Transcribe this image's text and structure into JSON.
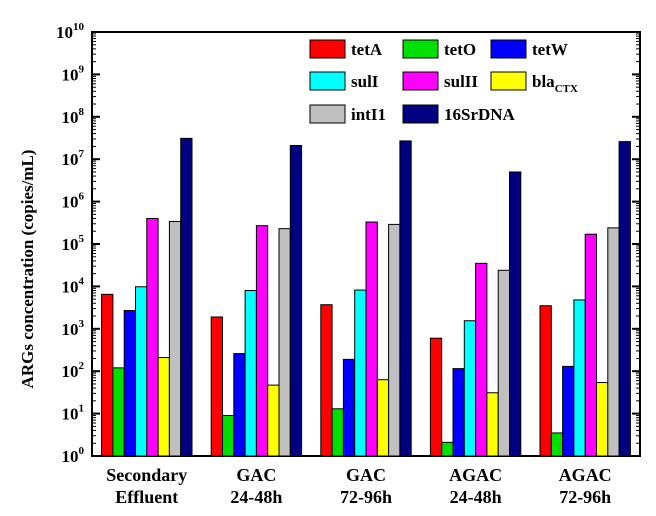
{
  "chart_data": {
    "type": "bar",
    "title": "",
    "xlabel": "",
    "ylabel": "ARGs concentration (copies/mL)",
    "yscale": "log",
    "ylim": [
      1,
      10000000000
    ],
    "y_tick_labels": [
      {
        "base": "10",
        "exp": "0"
      },
      {
        "base": "10",
        "exp": "1"
      },
      {
        "base": "10",
        "exp": "2"
      },
      {
        "base": "10",
        "exp": "3"
      },
      {
        "base": "10",
        "exp": "4"
      },
      {
        "base": "10",
        "exp": "5"
      },
      {
        "base": "10",
        "exp": "6"
      },
      {
        "base": "10",
        "exp": "7"
      },
      {
        "base": "10",
        "exp": "8"
      },
      {
        "base": "10",
        "exp": "9"
      },
      {
        "base": "10",
        "exp": "10"
      }
    ],
    "categories": [
      [
        "Secondary",
        "Effluent"
      ],
      [
        "GAC",
        "24-48h"
      ],
      [
        "GAC",
        "72-96h"
      ],
      [
        "AGAC",
        "24-48h"
      ],
      [
        "AGAC",
        "72-96h"
      ]
    ],
    "legend_position": "top-right",
    "grid": false,
    "series": [
      {
        "name": "tetA",
        "name_sub": "",
        "color": "#ff0000",
        "values": [
          6500,
          1900,
          3700,
          600,
          3500
        ]
      },
      {
        "name": "tetO",
        "name_sub": "",
        "color": "#00e000",
        "values": [
          120,
          9,
          13,
          2.1,
          3.5
        ]
      },
      {
        "name": "tetW",
        "name_sub": "",
        "color": "#0000ff",
        "values": [
          2700,
          260,
          190,
          115,
          130
        ]
      },
      {
        "name": "sulI",
        "name_sub": "",
        "color": "#00ffff",
        "values": [
          9800,
          8000,
          8200,
          1550,
          4800
        ]
      },
      {
        "name": "sulII",
        "name_sub": "",
        "color": "#ff00ff",
        "values": [
          400000,
          270000,
          330000,
          35000,
          170000
        ]
      },
      {
        "name": "bla",
        "name_sub": "CTX",
        "color": "#ffff00",
        "values": [
          210,
          47,
          63,
          31,
          54
        ]
      },
      {
        "name": "intI1",
        "name_sub": "",
        "color": "#c0c0c0",
        "values": [
          340000,
          230000,
          290000,
          24000,
          240000
        ]
      },
      {
        "name": "16SrDNA",
        "name_sub": "",
        "color": "#000080",
        "values": [
          31000000,
          21000000,
          27000000,
          5000000,
          26000000
        ]
      }
    ]
  }
}
